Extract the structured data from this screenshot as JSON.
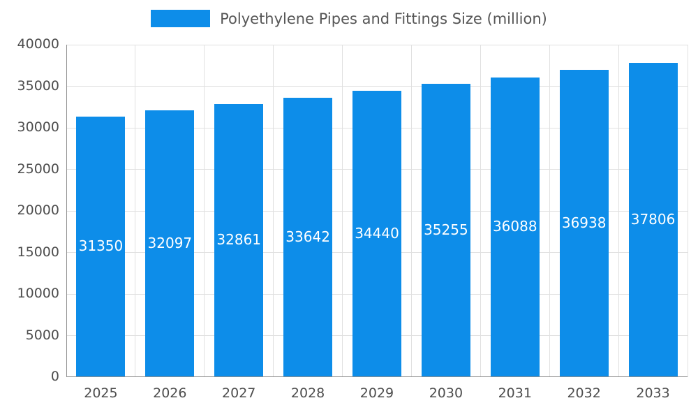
{
  "chart_data": {
    "type": "bar",
    "title": "Polyethylene Pipes and Fittings Size (million)",
    "categories": [
      "2025",
      "2026",
      "2027",
      "2028",
      "2029",
      "2030",
      "2031",
      "2032",
      "2033"
    ],
    "values": [
      31350,
      32097,
      32861,
      33642,
      34440,
      35255,
      36088,
      36938,
      37806
    ],
    "xlabel": "",
    "ylabel": "",
    "ylim": [
      0,
      40000
    ],
    "ytick_step": 5000,
    "bar_color": "#0d8de9",
    "value_label_color": "#ffffff",
    "grid": true,
    "legend_position": "top"
  }
}
